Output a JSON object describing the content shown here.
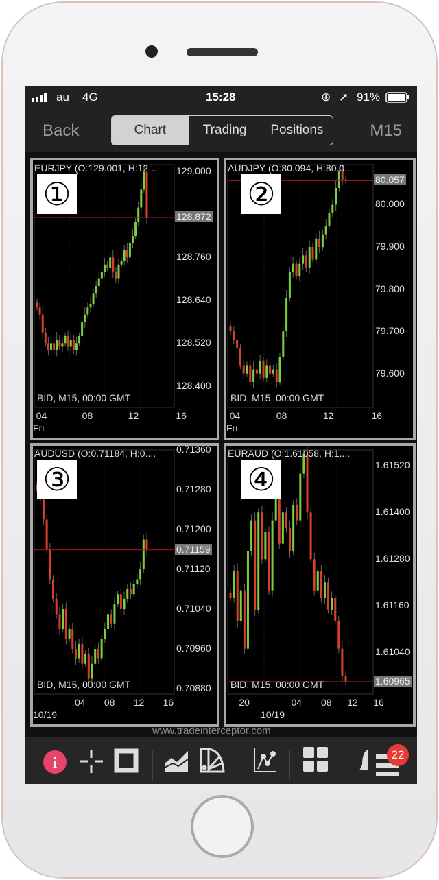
{
  "status": {
    "carrier": "au",
    "network": "4G",
    "time": "15:28",
    "battery": "91%"
  },
  "nav": {
    "back": "Back",
    "tabs": [
      "Chart",
      "Trading",
      "Positions"
    ],
    "active_tab": "Chart",
    "timeframe": "M15"
  },
  "footer_text": "BID, M15, 00:00 GMT",
  "watermark": "www.tradeinterceptor.com",
  "colors": {
    "up": "#7ccf3a",
    "down": "#d9402c",
    "price_line": "#b01818",
    "badge": "#e93a36",
    "info": "#e8436a"
  },
  "toolbar": {
    "icons": [
      "info-icon",
      "crosshair-icon",
      "frame-icon",
      "area-chart-icon",
      "drawing-tools-icon",
      "indicator-icon",
      "grid-layout-icon",
      "bell-icon",
      "menu-icon"
    ],
    "badge_count": "22"
  },
  "chart_data": [
    {
      "type": "candlestick",
      "number": "①",
      "header": "EURJPY (O:129.001, H:12...",
      "yticks": [
        "129.000",
        "128.760",
        "128.640",
        "128.520",
        "128.400"
      ],
      "ytick_values": [
        129.0,
        128.76,
        128.64,
        128.52,
        128.4
      ],
      "current": "128.872",
      "current_value": 128.872,
      "ylim": [
        128.34,
        129.02
      ],
      "xticks": [
        "04",
        "08",
        "12",
        "16"
      ],
      "xsub": "Fri",
      "closes": [
        128.62,
        128.6,
        128.55,
        128.52,
        128.5,
        128.52,
        128.5,
        128.53,
        128.51,
        128.52,
        128.54,
        128.51,
        128.53,
        128.5,
        128.52,
        128.54,
        128.58,
        128.6,
        128.62,
        128.63,
        128.66,
        128.68,
        128.7,
        128.72,
        128.74,
        128.73,
        128.76,
        128.72,
        128.7,
        128.74,
        128.75,
        128.78,
        128.76,
        128.8,
        128.82,
        128.86,
        128.9,
        128.95,
        129.0,
        128.87
      ]
    },
    {
      "type": "candlestick",
      "number": "②",
      "header": "AUDJPY (O:80.094, H:80.0...",
      "yticks": [
        "80.000",
        "79.900",
        "79.800",
        "79.700",
        "79.600"
      ],
      "ytick_values": [
        80.0,
        79.9,
        79.8,
        79.7,
        79.6
      ],
      "current": "80.057",
      "current_value": 80.057,
      "ylim": [
        79.52,
        80.095
      ],
      "xticks": [
        "04",
        "08",
        "12",
        "16"
      ],
      "xsub": "Fri",
      "closes": [
        79.7,
        79.68,
        79.66,
        79.62,
        79.6,
        79.62,
        79.58,
        79.61,
        79.6,
        79.63,
        79.59,
        79.62,
        79.6,
        79.61,
        79.58,
        79.64,
        79.7,
        79.78,
        79.84,
        79.86,
        79.83,
        79.86,
        79.88,
        79.85,
        79.9,
        79.87,
        79.92,
        79.9,
        79.93,
        79.95,
        79.98,
        80.0,
        80.04,
        80.08,
        80.06,
        80.057
      ]
    },
    {
      "type": "candlestick",
      "number": "③",
      "header": "AUDUSD (O:0.71184, H:0....",
      "yticks": [
        "0.71360",
        "0.71280",
        "0.71200",
        "0.71120",
        "0.71040",
        "0.70960",
        "0.70880"
      ],
      "ytick_values": [
        0.7136,
        0.7128,
        0.712,
        0.7112,
        0.7104,
        0.7096,
        0.7088
      ],
      "current": "0.71159",
      "current_value": 0.71159,
      "ylim": [
        0.70869,
        0.7136
      ],
      "xticks": [
        "04",
        "08",
        "12",
        "16"
      ],
      "xsub": "10/19",
      "closes": [
        0.7128,
        0.7126,
        0.7122,
        0.7116,
        0.711,
        0.7106,
        0.7103,
        0.71,
        0.7104,
        0.7098,
        0.71,
        0.7096,
        0.7094,
        0.7097,
        0.7093,
        0.7095,
        0.709,
        0.7093,
        0.7096,
        0.7094,
        0.7098,
        0.71,
        0.7103,
        0.7101,
        0.7105,
        0.7107,
        0.7104,
        0.7106,
        0.7108,
        0.7107,
        0.7109,
        0.711,
        0.7112,
        0.7118,
        0.71159
      ]
    },
    {
      "type": "candlestick",
      "number": "④",
      "header": "EURAUD (O:1.61058, H:1....",
      "yticks": [
        "1.61520",
        "1.61400",
        "1.61280",
        "1.61160",
        "1.61040"
      ],
      "ytick_values": [
        1.6152,
        1.614,
        1.6128,
        1.6116,
        1.6104
      ],
      "current": "1.60965",
      "current_value": 1.60965,
      "ylim": [
        1.60933,
        1.61561
      ],
      "xticks": [
        "20",
        "04",
        "08",
        "12",
        "16"
      ],
      "xsub": "10/19",
      "closes": [
        1.6118,
        1.6125,
        1.6112,
        1.612,
        1.6105,
        1.613,
        1.6138,
        1.6115,
        1.614,
        1.6128,
        1.6135,
        1.612,
        1.6138,
        1.6145,
        1.6132,
        1.614,
        1.6136,
        1.613,
        1.6142,
        1.6138,
        1.615,
        1.6155,
        1.614,
        1.6128,
        1.612,
        1.6125,
        1.6118,
        1.6122,
        1.6115,
        1.6118,
        1.6112,
        1.6105,
        1.6098,
        1.60965
      ]
    }
  ]
}
